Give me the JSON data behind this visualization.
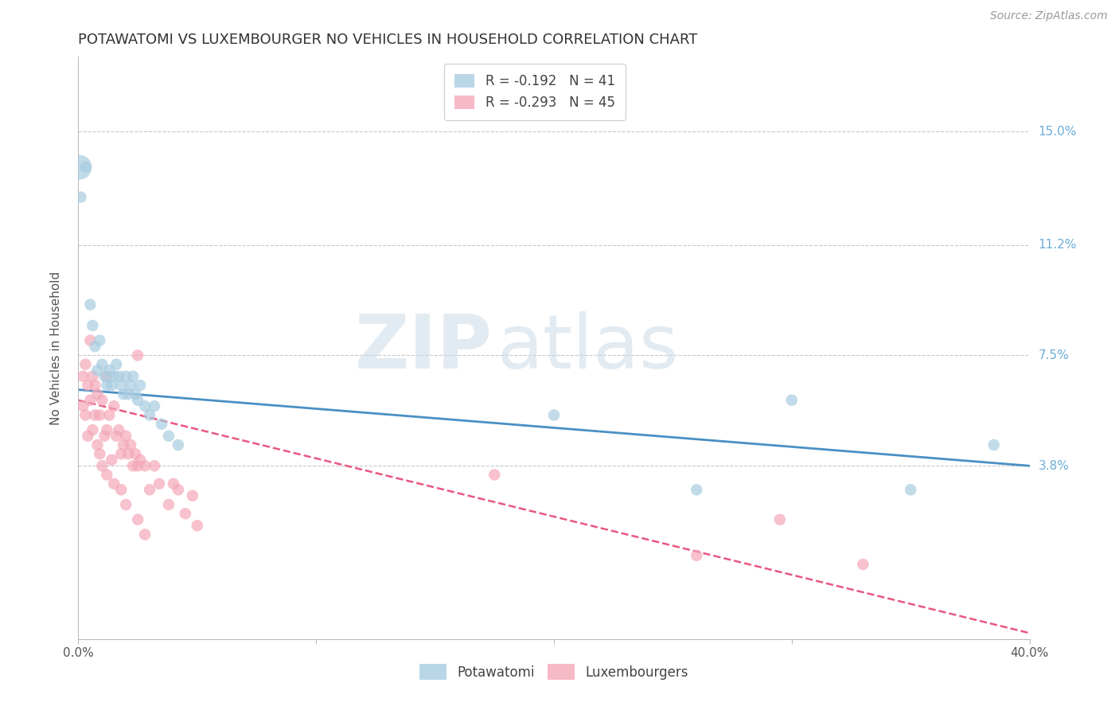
{
  "title": "POTAWATOMI VS LUXEMBOURGER NO VEHICLES IN HOUSEHOLD CORRELATION CHART",
  "source": "Source: ZipAtlas.com",
  "ylabel": "No Vehicles in Household",
  "ytick_labels": [
    "15.0%",
    "11.2%",
    "7.5%",
    "3.8%"
  ],
  "ytick_values": [
    0.15,
    0.112,
    0.075,
    0.038
  ],
  "xmin": 0.0,
  "xmax": 0.4,
  "ymin": -0.02,
  "ymax": 0.175,
  "legend_blue_r": "-0.192",
  "legend_blue_n": "41",
  "legend_pink_r": "-0.293",
  "legend_pink_n": "45",
  "blue_color": "#a8cce0",
  "pink_color": "#f4a8b8",
  "blue_line_color": "#4a90c4",
  "pink_line_color": "#e85880",
  "watermark_zip": "ZIP",
  "watermark_atlas": "atlas",
  "potawatomi_x": [
    0.001,
    0.003,
    0.005,
    0.006,
    0.007,
    0.008,
    0.009,
    0.01,
    0.011,
    0.012,
    0.013,
    0.014,
    0.015,
    0.016,
    0.017,
    0.018,
    0.019,
    0.02,
    0.021,
    0.022,
    0.023,
    0.024,
    0.025,
    0.026,
    0.028,
    0.03,
    0.032,
    0.035,
    0.038,
    0.042,
    0.2,
    0.26,
    0.3,
    0.35,
    0.385
  ],
  "potawatomi_y": [
    0.128,
    0.138,
    0.092,
    0.085,
    0.078,
    0.07,
    0.08,
    0.072,
    0.068,
    0.065,
    0.07,
    0.065,
    0.068,
    0.072,
    0.068,
    0.065,
    0.062,
    0.068,
    0.062,
    0.065,
    0.068,
    0.062,
    0.06,
    0.065,
    0.058,
    0.055,
    0.058,
    0.052,
    0.048,
    0.045,
    0.055,
    0.03,
    0.06,
    0.03,
    0.045
  ],
  "potawatomi_large_x": [
    0.0005
  ],
  "potawatomi_large_y": [
    0.138
  ],
  "potawatomi_large_size": 500,
  "luxembourger_x": [
    0.002,
    0.003,
    0.004,
    0.005,
    0.006,
    0.007,
    0.007,
    0.008,
    0.009,
    0.01,
    0.011,
    0.012,
    0.012,
    0.013,
    0.014,
    0.015,
    0.016,
    0.017,
    0.018,
    0.019,
    0.02,
    0.021,
    0.022,
    0.023,
    0.024,
    0.025,
    0.026,
    0.028,
    0.03,
    0.032,
    0.034,
    0.038,
    0.04,
    0.042,
    0.045,
    0.048,
    0.05,
    0.025,
    0.26,
    0.295,
    0.33
  ],
  "luxembourger_y": [
    0.068,
    0.072,
    0.065,
    0.08,
    0.068,
    0.065,
    0.055,
    0.062,
    0.055,
    0.06,
    0.048,
    0.068,
    0.05,
    0.055,
    0.04,
    0.058,
    0.048,
    0.05,
    0.042,
    0.045,
    0.048,
    0.042,
    0.045,
    0.038,
    0.042,
    0.038,
    0.04,
    0.038,
    0.03,
    0.038,
    0.032,
    0.025,
    0.032,
    0.03,
    0.022,
    0.028,
    0.018,
    0.075,
    0.008,
    0.02,
    0.005
  ],
  "luxembourger_extra_x": [
    0.002,
    0.003,
    0.004,
    0.005,
    0.006,
    0.008,
    0.009,
    0.01,
    0.012,
    0.015,
    0.018,
    0.02,
    0.025,
    0.028,
    0.175
  ],
  "luxembourger_extra_y": [
    0.058,
    0.055,
    0.048,
    0.06,
    0.05,
    0.045,
    0.042,
    0.038,
    0.035,
    0.032,
    0.03,
    0.025,
    0.02,
    0.015,
    0.035
  ],
  "blue_trendline_x0": 0.0,
  "blue_trendline_x1": 0.4,
  "blue_trendline_y0": 0.0635,
  "blue_trendline_y1": 0.038,
  "pink_trendline_x0": 0.0,
  "pink_trendline_x1": 0.4,
  "pink_trendline_y0": 0.06,
  "pink_trendline_y1": -0.018,
  "grid_color": "#c8c8c8",
  "background_color": "#ffffff",
  "title_fontsize": 13,
  "axis_label_fontsize": 11,
  "tick_fontsize": 11,
  "legend_fontsize": 12,
  "source_fontsize": 10
}
